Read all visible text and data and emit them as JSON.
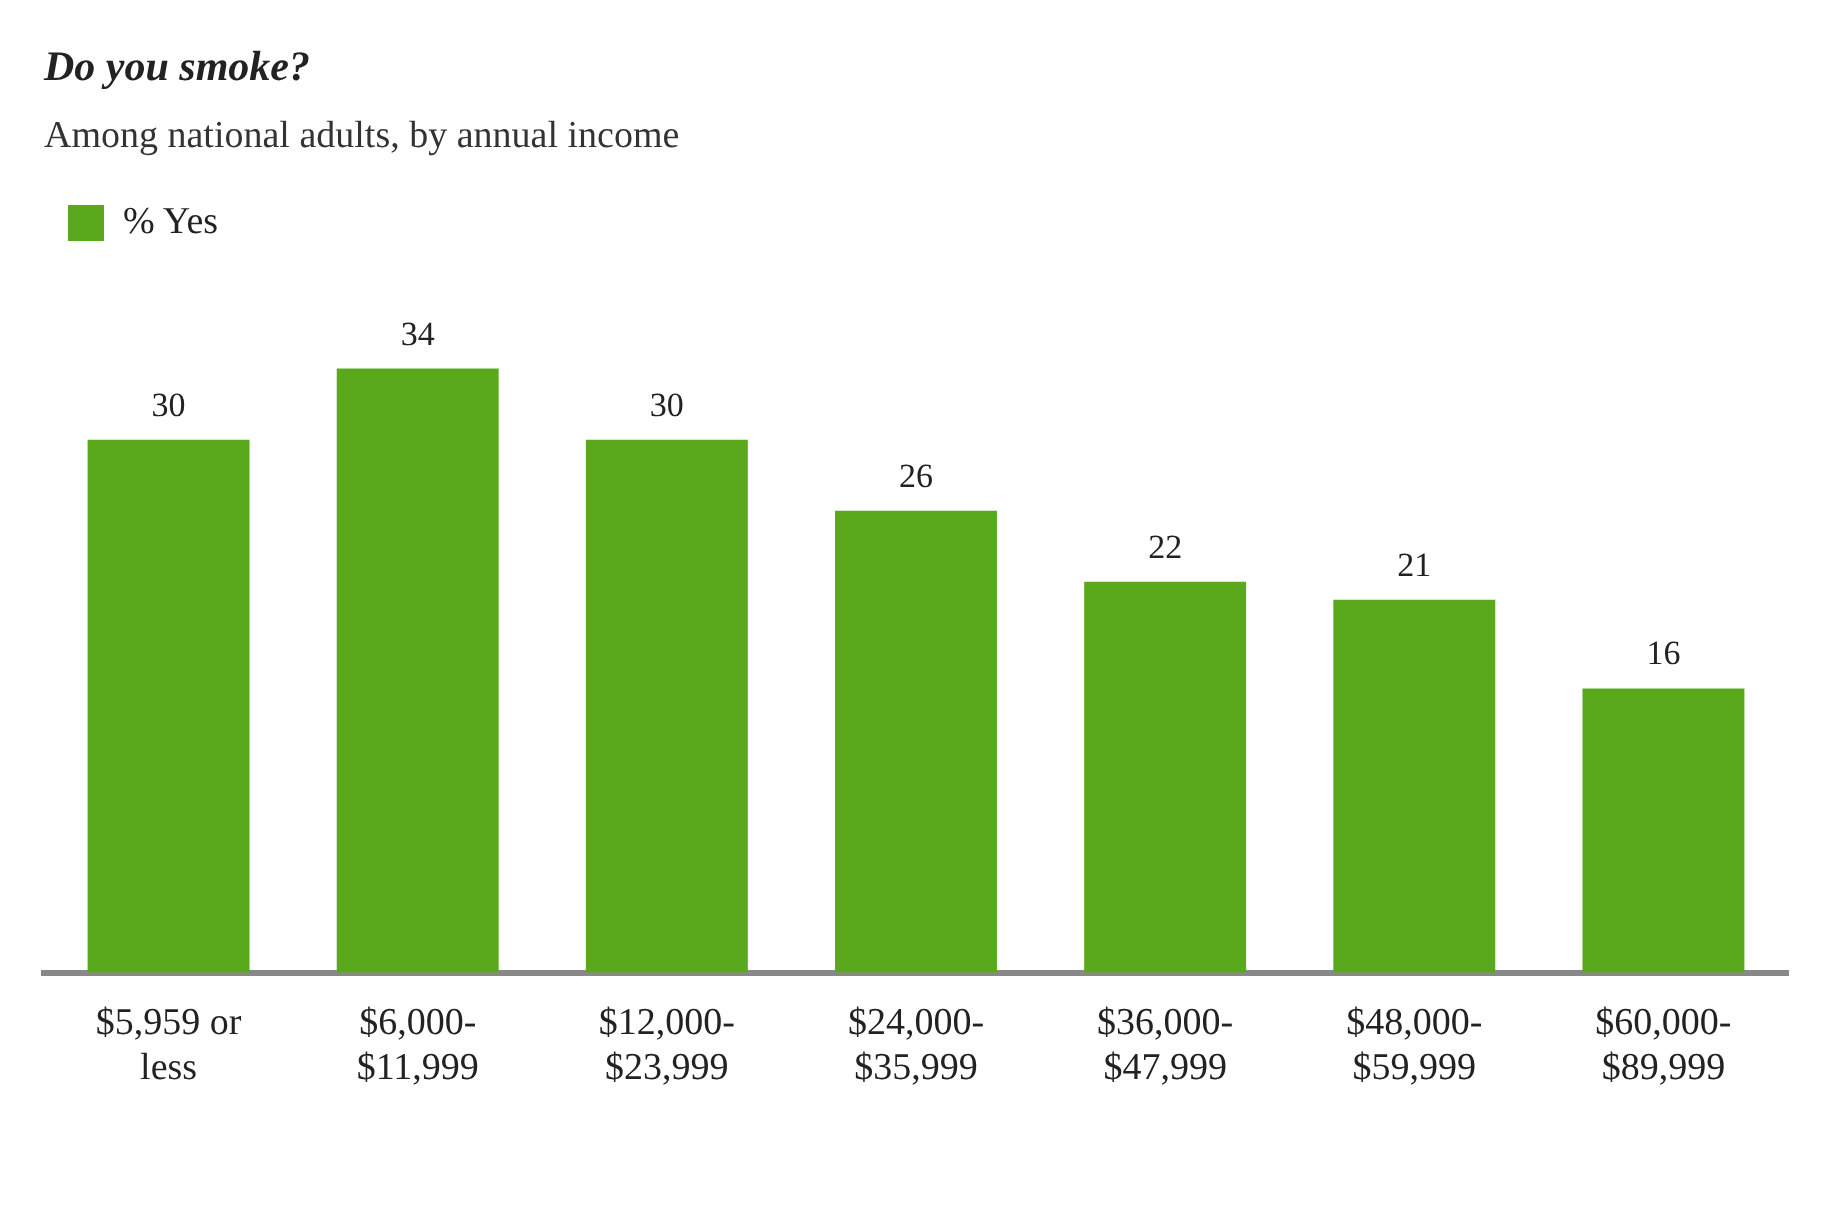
{
  "chart_data": {
    "type": "bar",
    "title": "Do you smoke?",
    "subtitle": "Among national adults, by annual income",
    "categories": [
      "$5,959 or\nless",
      "$6,000-\n$11,999",
      "$12,000-\n$23,999",
      "$24,000-\n$35,999",
      "$36,000-\n$47,999",
      "$48,000-\n$59,999",
      "$60,000-\n$89,999"
    ],
    "series": [
      {
        "name": "% Yes",
        "color": "#5aa91d",
        "values": [
          30,
          34,
          30,
          26,
          22,
          21,
          16
        ]
      }
    ],
    "data_labels": true,
    "legend": "top left",
    "grid": false
  }
}
